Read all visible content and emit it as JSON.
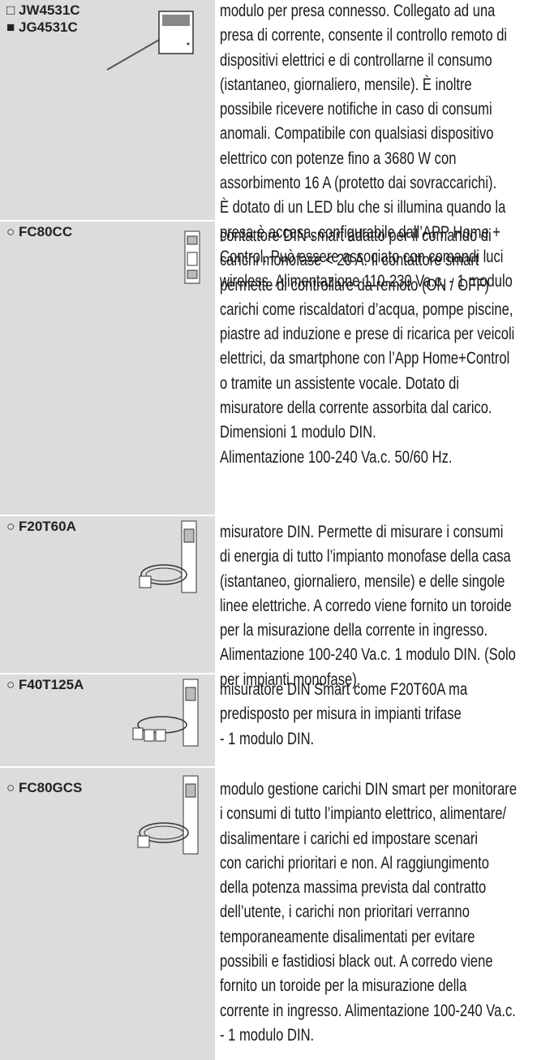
{
  "rows": [
    {
      "codes": [
        "□ JW4531C",
        "■ JG4531C"
      ],
      "lines": [
        "modulo per presa connesso. Collegato ad una",
        "presa di corrente, consente il controllo remoto di",
        "dispositivi elettrici e di controllarne il consumo",
        "(istantaneo, giornaliero, mensile). È inoltre",
        "possibile ricevere notifiche in caso di consumi",
        "anomali. Compatibile con qualsiasi dispositivo",
        "elettrico con potenze fino a 3680 W con",
        "assorbimento 16 A (protetto dai sovraccarichi).",
        "È dotato di un LED blu che si illumina quando la",
        "presa è accesa, configurabile dall’APP Home +",
        "Control. Può essere associato con comandi luci",
        "wireless. Alimentazione 110-230 Va.c. - 1 modulo"
      ]
    },
    {
      "codes": [
        "○ FC80CC"
      ],
      "lines": [
        "contattore DIN smart adatto per il comando di",
        "carichi monofase < 20 A. Il contattore smart",
        "permette di controllare da remoto (ON / OFF)",
        "carichi come riscaldatori d’acqua, pompe piscine,",
        "piastre ad induzione e prese di ricarica per veicoli",
        "elettrici, da smartphone con l’App Home+Control",
        "o tramite un assistente vocale. Dotato di",
        "misuratore della corrente assorbita dal carico.",
        "Dimensioni 1 modulo DIN.",
        "Alimentazione 100-240 Va.c. 50/60 Hz."
      ]
    },
    {
      "codes": [
        "○ F20T60A"
      ],
      "lines": [
        "misuratore DIN. Permette di misurare i consumi",
        "di energia di tutto l’impianto monofase della casa",
        "(istantaneo, giornaliero, mensile) e delle singole",
        "linee elettriche. A corredo viene fornito un toroide",
        "per la misurazione della corrente in ingresso.",
        "Alimentazione 100-240 Va.c. 1 modulo DIN. (Solo",
        "per impianti monofase)."
      ]
    },
    {
      "codes": [
        "○ F40T125A"
      ],
      "lines": [
        "misuratore DIN Smart come F20T60A ma",
        "predisposto per misura in impianti trifase",
        "- 1 modulo DIN."
      ]
    },
    {
      "codes": [
        "○ FC80GCS"
      ],
      "lines": [
        "modulo gestione carichi DIN smart per monitorare",
        "i consumi di tutto l’impianto elettrico, alimentare/",
        "disalimentare i carichi ed impostare scenari",
        "con carichi prioritari e non. Al raggiungimento",
        "della potenza massima prevista dal contratto",
        "dell’utente, i carichi non prioritari verranno",
        "temporaneamente disalimentati per evitare",
        "possibili e fastidiosi black out. A corredo viene",
        "fornito un toroide per la misurazione della",
        "corrente in ingresso. Alimentazione 100-240 Va.c.",
        "- 1 modulo DIN."
      ]
    }
  ]
}
